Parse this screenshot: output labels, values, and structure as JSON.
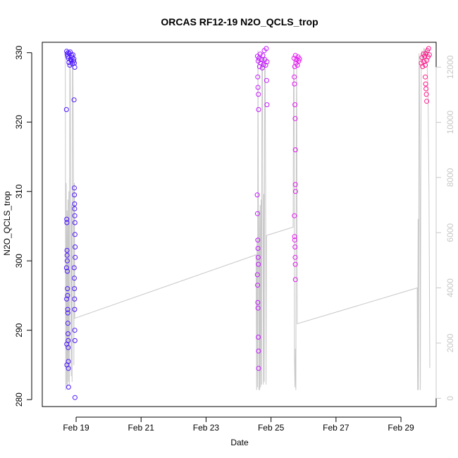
{
  "chart_data": {
    "type": "scatter",
    "title": "ORCAS RF12-19 N2O_QCLS_trop",
    "xlabel": "Date",
    "ylabel": "N2O_QCLS_trop",
    "xlim": [
      "2016-02-17T23:00",
      "2016-03-01T02:00"
    ],
    "ylim": [
      279.0,
      331.5
    ],
    "y2lim": [
      -300,
      12900
    ],
    "x_ticks": [
      {
        "label": "Feb 19",
        "date": "2016-02-19"
      },
      {
        "label": "Feb 21",
        "date": "2016-02-21"
      },
      {
        "label": "Feb 23",
        "date": "2016-02-23"
      },
      {
        "label": "Feb 25",
        "date": "2016-02-25"
      },
      {
        "label": "Feb 27",
        "date": "2016-02-27"
      },
      {
        "label": "Feb 29",
        "date": "2016-02-29"
      }
    ],
    "y_ticks": [
      280,
      290,
      300,
      310,
      320,
      330
    ],
    "y2_ticks": [
      0,
      2000,
      4000,
      6000,
      8000,
      10000,
      12000
    ],
    "grid": false,
    "legend": "none",
    "colors": {
      "flight1": "#4b14ff",
      "flight2": "#c41aff",
      "flight3": "#e317f0",
      "flight4": "#ff1a8c",
      "altitude_line": "#c8c8c8"
    },
    "series": [
      {
        "role": "scatter",
        "color_key": "flight1",
        "points": [
          [
            "2016-02-18T17:00",
            330.2
          ],
          [
            "2016-02-18T17:20",
            329.8
          ],
          [
            "2016-02-18T17:40",
            329.5
          ],
          [
            "2016-02-18T18:00",
            330.0
          ],
          [
            "2016-02-18T18:20",
            329.2
          ],
          [
            "2016-02-18T18:40",
            328.6
          ],
          [
            "2016-02-18T19:00",
            329.9
          ],
          [
            "2016-02-18T19:20",
            328.2
          ],
          [
            "2016-02-18T19:40",
            330.1
          ],
          [
            "2016-02-18T20:00",
            329.0
          ],
          [
            "2016-02-18T20:20",
            328.9
          ],
          [
            "2016-02-18T20:40",
            329.6
          ],
          [
            "2016-02-18T21:00",
            329.3
          ],
          [
            "2016-02-18T21:20",
            328.4
          ],
          [
            "2016-02-18T21:40",
            329.7
          ],
          [
            "2016-02-18T22:00",
            328.8
          ],
          [
            "2016-02-18T22:20",
            329.1
          ],
          [
            "2016-02-18T22:40",
            328.5
          ],
          [
            "2016-02-18T23:00",
            327.9
          ],
          [
            "2016-02-18T16:50",
            321.8
          ],
          [
            "2016-02-18T17:05",
            306.0
          ],
          [
            "2016-02-18T17:10",
            305.5
          ],
          [
            "2016-02-18T17:15",
            301.5
          ],
          [
            "2016-02-18T17:20",
            300.8
          ],
          [
            "2016-02-18T17:25",
            300.0
          ],
          [
            "2016-02-18T17:30",
            298.5
          ],
          [
            "2016-02-18T17:35",
            296.0
          ],
          [
            "2016-02-18T17:40",
            295.0
          ],
          [
            "2016-02-18T17:45",
            293.0
          ],
          [
            "2016-02-18T17:50",
            292.5
          ],
          [
            "2016-02-18T17:55",
            291.0
          ],
          [
            "2016-02-18T18:00",
            289.5
          ],
          [
            "2016-02-18T18:05",
            288.5
          ],
          [
            "2016-02-18T18:10",
            287.5
          ],
          [
            "2016-02-18T18:15",
            285.5
          ],
          [
            "2016-02-18T18:20",
            284.5
          ],
          [
            "2016-02-18T18:25",
            281.8
          ],
          [
            "2016-02-18T16:55",
            299.0
          ],
          [
            "2016-02-18T17:00",
            294.5
          ],
          [
            "2016-02-18T17:05",
            288.0
          ],
          [
            "2016-02-18T17:10",
            285.0
          ],
          [
            "2016-02-18T22:30",
            323.2
          ],
          [
            "2016-02-18T22:40",
            310.5
          ],
          [
            "2016-02-18T22:45",
            309.5
          ],
          [
            "2016-02-18T22:50",
            308.2
          ],
          [
            "2016-02-18T22:55",
            307.5
          ],
          [
            "2016-02-18T23:00",
            306.5
          ],
          [
            "2016-02-18T23:05",
            305.5
          ],
          [
            "2016-02-18T23:10",
            303.8
          ],
          [
            "2016-02-18T23:15",
            302.0
          ],
          [
            "2016-02-18T23:20",
            300.5
          ],
          [
            "2016-02-18T22:35",
            299.0
          ],
          [
            "2016-02-18T22:40",
            297.5
          ],
          [
            "2016-02-18T22:45",
            296.0
          ],
          [
            "2016-02-18T22:50",
            294.5
          ],
          [
            "2016-02-18T22:55",
            293.0
          ],
          [
            "2016-02-18T23:00",
            290.0
          ],
          [
            "2016-02-18T23:05",
            288.5
          ],
          [
            "2016-02-18T23:10",
            280.3
          ]
        ]
      },
      {
        "role": "scatter",
        "color_key": "flight2",
        "points": [
          [
            "2016-02-24T14:00",
            329.5
          ],
          [
            "2016-02-24T14:30",
            328.8
          ],
          [
            "2016-02-24T15:00",
            329.2
          ],
          [
            "2016-02-24T15:30",
            328.0
          ],
          [
            "2016-02-24T16:00",
            329.8
          ],
          [
            "2016-02-24T16:30",
            328.5
          ],
          [
            "2016-02-24T17:00",
            329.0
          ],
          [
            "2016-02-24T17:30",
            327.8
          ],
          [
            "2016-02-24T18:00",
            329.6
          ],
          [
            "2016-02-24T18:30",
            328.3
          ],
          [
            "2016-02-24T19:00",
            330.3
          ],
          [
            "2016-02-24T19:30",
            329.0
          ],
          [
            "2016-02-24T20:00",
            328.2
          ],
          [
            "2016-02-24T20:30",
            330.6
          ],
          [
            "2016-02-24T21:00",
            328.7
          ],
          [
            "2016-02-24T14:10",
            326.5
          ],
          [
            "2016-02-24T14:20",
            325.0
          ],
          [
            "2016-02-24T14:40",
            324.0
          ],
          [
            "2016-02-24T14:50",
            321.8
          ],
          [
            "2016-02-24T13:50",
            309.5
          ],
          [
            "2016-02-24T14:00",
            306.8
          ],
          [
            "2016-02-24T14:10",
            303.0
          ],
          [
            "2016-02-24T14:20",
            301.8
          ],
          [
            "2016-02-24T14:30",
            300.5
          ],
          [
            "2016-02-24T14:40",
            299.5
          ],
          [
            "2016-02-24T13:55",
            298.0
          ],
          [
            "2016-02-24T14:05",
            296.5
          ],
          [
            "2016-02-24T14:15",
            294.0
          ],
          [
            "2016-02-24T14:25",
            293.2
          ],
          [
            "2016-02-24T14:35",
            289.0
          ],
          [
            "2016-02-24T14:45",
            287.0
          ],
          [
            "2016-02-24T14:50",
            284.5
          ],
          [
            "2016-02-24T20:45",
            326.0
          ],
          [
            "2016-02-24T21:00",
            322.5
          ]
        ]
      },
      {
        "role": "scatter",
        "color_key": "flight3",
        "points": [
          [
            "2016-02-25T17:00",
            329.2
          ],
          [
            "2016-02-25T17:30",
            328.0
          ],
          [
            "2016-02-25T18:00",
            329.6
          ],
          [
            "2016-02-25T18:30",
            328.5
          ],
          [
            "2016-02-25T19:00",
            329.0
          ],
          [
            "2016-02-25T19:30",
            328.2
          ],
          [
            "2016-02-25T20:00",
            329.4
          ],
          [
            "2016-02-25T20:30",
            328.8
          ],
          [
            "2016-02-25T21:00",
            329.1
          ],
          [
            "2016-02-25T17:10",
            326.5
          ],
          [
            "2016-02-25T17:20",
            325.5
          ],
          [
            "2016-02-25T17:40",
            322.5
          ],
          [
            "2016-02-25T17:50",
            320.5
          ],
          [
            "2016-02-25T18:00",
            316.0
          ],
          [
            "2016-02-25T17:55",
            311.0
          ],
          [
            "2016-02-25T18:05",
            310.0
          ],
          [
            "2016-02-25T17:15",
            306.5
          ],
          [
            "2016-02-25T17:25",
            303.5
          ],
          [
            "2016-02-25T17:35",
            303.0
          ],
          [
            "2016-02-25T17:45",
            302.0
          ],
          [
            "2016-02-25T17:50",
            300.5
          ],
          [
            "2016-02-25T17:55",
            299.5
          ],
          [
            "2016-02-25T18:00",
            297.3
          ]
        ]
      },
      {
        "role": "scatter",
        "color_key": "flight4",
        "points": [
          [
            "2016-02-29T15:00",
            328.5
          ],
          [
            "2016-02-29T15:30",
            329.3
          ],
          [
            "2016-02-29T16:00",
            328.0
          ],
          [
            "2016-02-29T16:30",
            329.8
          ],
          [
            "2016-02-29T17:00",
            328.7
          ],
          [
            "2016-02-29T17:30",
            329.5
          ],
          [
            "2016-02-29T18:00",
            328.2
          ],
          [
            "2016-02-29T18:30",
            329.9
          ],
          [
            "2016-02-29T19:00",
            328.9
          ],
          [
            "2016-02-29T19:30",
            330.3
          ],
          [
            "2016-02-29T20:00",
            329.4
          ],
          [
            "2016-02-29T20:30",
            330.6
          ],
          [
            "2016-02-29T21:00",
            329.7
          ],
          [
            "2016-02-29T18:00",
            326.5
          ],
          [
            "2016-02-29T18:15",
            325.5
          ],
          [
            "2016-02-29T18:30",
            324.8
          ],
          [
            "2016-02-29T18:45",
            324.0
          ],
          [
            "2016-02-29T19:00",
            323.0
          ]
        ]
      },
      {
        "role": "altitude_line",
        "color_key": "altitude_line",
        "axis": "right",
        "points": [
          [
            "2016-02-18T16:00",
            12500
          ],
          [
            "2016-02-18T16:20",
            300
          ],
          [
            "2016-02-18T16:40",
            7800
          ],
          [
            "2016-02-18T17:00",
            500
          ],
          [
            "2016-02-18T17:20",
            6800
          ],
          [
            "2016-02-18T17:40",
            400
          ],
          [
            "2016-02-18T18:00",
            7200
          ],
          [
            "2016-02-18T18:20",
            600
          ],
          [
            "2016-02-18T18:40",
            7500
          ],
          [
            "2016-02-18T19:00",
            500
          ],
          [
            "2016-02-18T19:20",
            12400
          ],
          [
            "2016-02-18T19:40",
            11800
          ],
          [
            "2016-02-18T20:00",
            6000
          ],
          [
            "2016-02-18T20:20",
            800
          ],
          [
            "2016-02-18T20:40",
            7000
          ],
          [
            "2016-02-18T21:00",
            600
          ],
          [
            "2016-02-18T21:20",
            12200
          ],
          [
            "2016-02-18T21:40",
            12000
          ],
          [
            "2016-02-18T22:00",
            8000
          ],
          [
            "2016-02-18T22:20",
            1200
          ],
          [
            "2016-02-18T22:40",
            7800
          ],
          [
            "2016-02-18T23:00",
            2900
          ],
          [
            "2016-02-24T13:00",
            5200
          ],
          [
            "2016-02-24T13:20",
            300
          ],
          [
            "2016-02-24T13:40",
            5800
          ],
          [
            "2016-02-24T14:00",
            400
          ],
          [
            "2016-02-24T14:20",
            12600
          ],
          [
            "2016-02-24T14:40",
            6500
          ],
          [
            "2016-02-24T15:00",
            300
          ],
          [
            "2016-02-24T15:20",
            6800
          ],
          [
            "2016-02-24T15:40",
            300
          ],
          [
            "2016-02-24T16:00",
            7000
          ],
          [
            "2016-02-24T16:20",
            400
          ],
          [
            "2016-02-24T16:40",
            7200
          ],
          [
            "2016-02-24T17:00",
            500
          ],
          [
            "2016-02-24T17:20",
            12400
          ],
          [
            "2016-02-24T17:40",
            12000
          ],
          [
            "2016-02-24T18:00",
            7200
          ],
          [
            "2016-02-24T18:20",
            500
          ],
          [
            "2016-02-24T18:40",
            7400
          ],
          [
            "2016-02-24T19:00",
            600
          ],
          [
            "2016-02-24T19:20",
            12500
          ],
          [
            "2016-02-24T19:40",
            12000
          ],
          [
            "2016-02-24T20:00",
            7500
          ],
          [
            "2016-02-24T20:20",
            500
          ],
          [
            "2016-02-24T20:40",
            5900
          ],
          [
            "2016-02-25T16:20",
            6200
          ],
          [
            "2016-02-25T16:40",
            12300
          ],
          [
            "2016-02-25T17:00",
            11800
          ],
          [
            "2016-02-25T17:20",
            1500
          ],
          [
            "2016-02-25T17:40",
            400
          ],
          [
            "2016-02-25T18:00",
            1800
          ],
          [
            "2016-02-25T18:20",
            300
          ],
          [
            "2016-02-25T18:40",
            10200
          ],
          [
            "2016-02-25T19:00",
            12200
          ],
          [
            "2016-02-25T19:20",
            2700
          ],
          [
            "2016-02-29T12:00",
            4000
          ],
          [
            "2016-02-29T12:20",
            300
          ],
          [
            "2016-02-29T12:40",
            6500
          ],
          [
            "2016-02-29T13:00",
            300
          ],
          [
            "2016-02-29T13:20",
            12500
          ],
          [
            "2016-02-29T13:40",
            12000
          ],
          [
            "2016-02-29T14:00",
            7800
          ],
          [
            "2016-02-29T14:20",
            300
          ],
          [
            "2016-02-29T14:40",
            8200
          ],
          [
            "2016-02-29T15:00",
            12300
          ],
          [
            "2016-02-29T15:30",
            12600
          ],
          [
            "2016-02-29T16:00",
            12200
          ],
          [
            "2016-02-29T17:00",
            12700
          ],
          [
            "2016-02-29T18:00",
            12400
          ],
          [
            "2016-02-29T19:00",
            12600
          ],
          [
            "2016-02-29T20:00",
            11000
          ],
          [
            "2016-02-29T20:40",
            7500
          ],
          [
            "2016-02-29T21:20",
            1100
          ]
        ]
      }
    ]
  }
}
